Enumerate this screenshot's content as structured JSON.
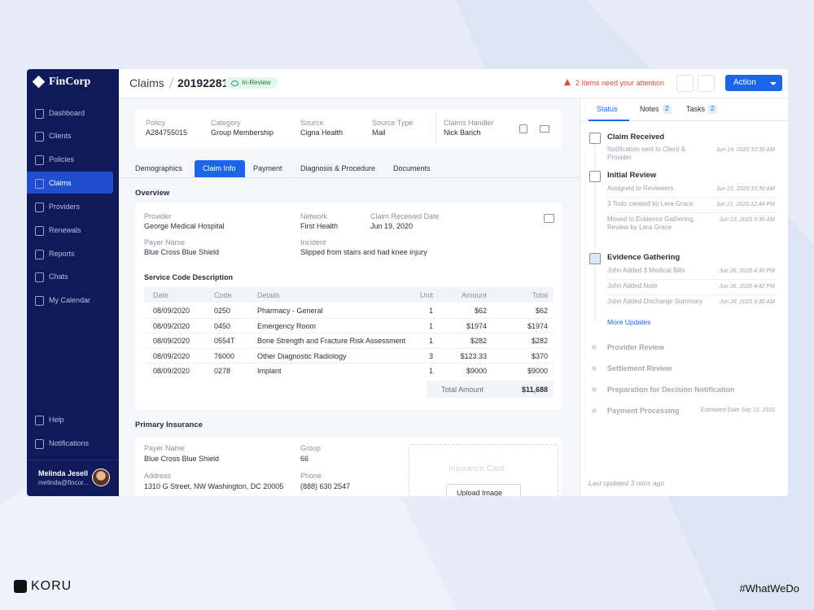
{
  "sidebar": {
    "logo": "FinCorp",
    "nav": [
      "Dashboard",
      "Clients",
      "Policies",
      "Claims",
      "Providers",
      "Renewals",
      "Reports",
      "Chats",
      "My Calendar"
    ],
    "footer_nav": [
      "Help",
      "Notifications"
    ],
    "user": {
      "name": "Melinda Jesell",
      "email": "melinda@fincor..."
    }
  },
  "header": {
    "section": "Claims",
    "claim_id": "20192281",
    "status": "In-Review",
    "alert": "2 Items need your attention",
    "action": "Action"
  },
  "policy_strip": {
    "fields": [
      {
        "label": "Policy",
        "value": "A284755015"
      },
      {
        "label": "Category",
        "value": "Group Membership"
      },
      {
        "label": "Source",
        "value": "Cigna Health"
      },
      {
        "label": "Source Type",
        "value": "Mail"
      },
      {
        "label": "Claims Handler",
        "value": "Nick Barich"
      }
    ]
  },
  "tabs": [
    "Demographics",
    "Claim Info",
    "Payment",
    "Diagnosis & Procedure",
    "Documents"
  ],
  "overview": {
    "title": "Overview",
    "fields": [
      {
        "label": "Provider",
        "value": "George Medical Hospital"
      },
      {
        "label": "Network",
        "value": "First Health"
      },
      {
        "label": "Claim Received Date",
        "value": "Jun 19, 2020"
      },
      {
        "label": "Payer Name",
        "value": "Blue Cross Blue Shield"
      },
      {
        "label": "Incident",
        "value": "Slipped from stairs and had knee injury"
      }
    ],
    "service_title": "Service Code Description",
    "table": {
      "columns": [
        "Date",
        "Code",
        "Details",
        "Unit",
        "Amount",
        "Total"
      ],
      "rows": [
        [
          "08/09/2020",
          "0250",
          "Pharmacy - General",
          "1",
          "$62",
          "$62"
        ],
        [
          "08/09/2020",
          "0450",
          "Emergency Room",
          "1",
          "$1974",
          "$1974"
        ],
        [
          "08/09/2020",
          "0554T",
          "Bone Strength and Fracture Risk Assessment",
          "1",
          "$282",
          "$282"
        ],
        [
          "08/09/2020",
          "76000",
          "Other Diagnostic Radiology",
          "3",
          "$123.33",
          "$370"
        ],
        [
          "08/09/2020",
          "0278",
          "Implant",
          "1",
          "$9000",
          "$9000"
        ]
      ],
      "total_label": "Total Amount",
      "total": "$11,688"
    }
  },
  "primary_insurance": {
    "title": "Primary Insurance",
    "fields": [
      {
        "label": "Payer Name",
        "value": "Blue Cross Blue Shield"
      },
      {
        "label": "Group",
        "value": "66"
      },
      {
        "label": "Address",
        "value": "1310 G Street, NW Washington, DC 20005"
      },
      {
        "label": "Phone",
        "value": "(888) 630 2547"
      }
    ],
    "card_placeholder": "Insurance Card",
    "upload": "Upload Image"
  },
  "status_panel": {
    "tabs": [
      {
        "label": "Status"
      },
      {
        "label": "Notes",
        "count": 2
      },
      {
        "label": "Tasks",
        "count": 2
      }
    ],
    "stages": [
      {
        "title": "Claim Received",
        "events": [
          {
            "text": "Notification sent to Client & Provider",
            "time": "Jun 19, 2020 10:30 AM"
          }
        ]
      },
      {
        "title": "Initial Review",
        "events": [
          {
            "text": "Assigned to Reviewers",
            "time": "Jun 21, 2020 10:30 AM"
          },
          {
            "text": "3 Todo created by Lera Grace",
            "time": "Jun 21, 2020 12:44 PM"
          },
          {
            "text": "Moved to Evidence Gathering, Review by Lera Grace",
            "time": "Jun 23, 2020 9:30 AM"
          }
        ]
      },
      {
        "title": "Evidence Gathering",
        "events": [
          {
            "text": "John Added 3 Medical Bills",
            "time": "Jun 26, 2020 4:30 PM"
          },
          {
            "text": "John Added Note",
            "time": "Jun 26, 2020 4:42 PM"
          },
          {
            "text": "John Added Discharge Summary",
            "time": "Jun 28, 2020 9:30 AM"
          }
        ]
      }
    ],
    "more": "More Updates",
    "pending": [
      {
        "title": "Provider Review"
      },
      {
        "title": "Settlement Review"
      },
      {
        "title": "Preparation for Decision Notification"
      },
      {
        "title": "Payment Processing",
        "note": "Estimated Date Sep 12, 2020"
      }
    ],
    "last_updated": "Last updated 3 mins ago"
  },
  "footer": {
    "brand": "KORU",
    "tag": "#WhatWeDo"
  }
}
